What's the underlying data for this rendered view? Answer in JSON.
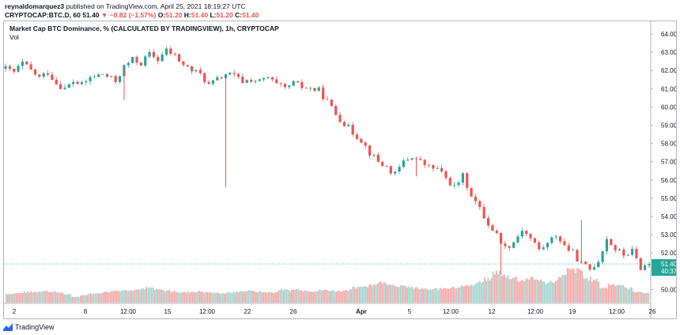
{
  "header": {
    "author": "reynaldomarquez3",
    "published": "published on TradingView.com, April 25, 2021 18:19:27 UTC",
    "symbol": "CRYPTOCAP:BTC.D, 60",
    "price": "51.40",
    "change": "−0.82 (−1.57%)",
    "o_label": "O:",
    "o_value": "51.20",
    "h_label": "H:",
    "h_value": "51.40",
    "l_label": "L:",
    "l_value": "51.20",
    "c_label": "C:",
    "c_value": "51.40"
  },
  "colors": {
    "up": "#26a69a",
    "down": "#ef5350",
    "up_vol": "#9dd5cf",
    "down_vol": "#f4a6a4",
    "axis_text": "#131722",
    "brand": "#2962ff"
  },
  "footer": {
    "brand": "TradingView"
  },
  "chart_data": {
    "type": "candlestick",
    "title": "Market Cap BTC Dominance, % (CALCULATED BY TRADINGVIEW), 1h, CRYPTOCAP",
    "volume_label": "Vol",
    "ylim": [
      49.2,
      64.5
    ],
    "y_ticks": [
      "64.00",
      "63.00",
      "62.00",
      "61.00",
      "60.00",
      "59.00",
      "58.00",
      "57.00",
      "56.00",
      "55.00",
      "54.00",
      "53.00",
      "52.00",
      "50.00"
    ],
    "x_ticks": [
      "2",
      "8",
      "12:00",
      "15",
      "12:00",
      "22",
      "26",
      "Apr",
      "5",
      "12:00",
      "12",
      "12:00",
      "19",
      "12:00",
      "26"
    ],
    "last_price": "51.40",
    "countdown": "40:37",
    "price_path": [
      [
        0,
        62.1
      ],
      [
        2,
        61.9
      ],
      [
        4,
        62.4
      ],
      [
        6,
        62.0
      ],
      [
        8,
        61.6
      ],
      [
        10,
        61.9
      ],
      [
        12,
        61.3
      ],
      [
        14,
        61.0
      ],
      [
        16,
        61.4
      ],
      [
        18,
        61.2
      ],
      [
        20,
        61.6
      ],
      [
        23,
        61.8
      ],
      [
        26,
        61.4
      ],
      [
        28,
        62.2
      ],
      [
        30,
        62.6
      ],
      [
        32,
        62.4
      ],
      [
        34,
        62.9
      ],
      [
        36,
        62.6
      ],
      [
        38,
        63.1
      ],
      [
        40,
        62.8
      ],
      [
        42,
        62.3
      ],
      [
        44,
        62.0
      ],
      [
        46,
        61.8
      ],
      [
        48,
        61.2
      ],
      [
        50,
        61.5
      ],
      [
        52,
        61.8
      ],
      [
        54,
        61.7
      ],
      [
        56,
        61.4
      ],
      [
        58,
        61.5
      ],
      [
        60,
        61.4
      ],
      [
        62,
        61.6
      ],
      [
        64,
        61.2
      ],
      [
        66,
        61.0
      ],
      [
        68,
        61.3
      ],
      [
        70,
        61.1
      ],
      [
        72,
        61.0
      ],
      [
        74,
        60.9
      ],
      [
        76,
        60.3
      ],
      [
        78,
        59.6
      ],
      [
        80,
        59.1
      ],
      [
        82,
        58.6
      ],
      [
        84,
        58.2
      ],
      [
        86,
        57.5
      ],
      [
        88,
        57.0
      ],
      [
        90,
        56.7
      ],
      [
        92,
        56.3
      ],
      [
        94,
        57.0
      ],
      [
        96,
        57.3
      ],
      [
        98,
        57.0
      ],
      [
        100,
        56.7
      ],
      [
        102,
        56.6
      ],
      [
        104,
        56.1
      ],
      [
        106,
        55.6
      ],
      [
        108,
        56.2
      ],
      [
        110,
        55.2
      ],
      [
        112,
        54.4
      ],
      [
        114,
        53.6
      ],
      [
        116,
        53.0
      ],
      [
        118,
        52.3
      ],
      [
        120,
        52.6
      ],
      [
        122,
        53.3
      ],
      [
        124,
        52.8
      ],
      [
        126,
        52.2
      ],
      [
        128,
        52.5
      ],
      [
        130,
        53.0
      ],
      [
        132,
        52.4
      ],
      [
        134,
        52.0
      ],
      [
        136,
        51.4
      ],
      [
        138,
        51.1
      ],
      [
        140,
        51.6
      ],
      [
        142,
        52.8
      ],
      [
        144,
        52.2
      ],
      [
        146,
        51.9
      ],
      [
        148,
        52.1
      ],
      [
        150,
        51.2
      ],
      [
        152,
        51.4
      ]
    ],
    "spikes": [
      [
        28,
        60.4
      ],
      [
        52,
        55.6
      ],
      [
        97,
        56.2
      ],
      [
        117,
        50.8
      ],
      [
        136,
        53.8
      ]
    ],
    "volume": [
      20,
      21,
      23,
      24,
      26,
      25,
      23,
      18,
      13,
      17,
      20,
      22,
      25,
      27,
      28,
      29,
      30,
      33,
      29,
      27,
      25,
      23,
      24,
      25,
      23,
      22,
      21,
      23,
      25,
      27,
      25,
      23,
      23,
      29,
      28,
      30,
      27,
      26,
      28,
      27,
      26,
      29,
      33,
      37,
      41,
      45,
      43,
      38,
      36,
      33,
      31,
      29,
      31,
      33,
      35,
      37,
      40,
      45,
      52,
      68,
      60,
      56,
      50,
      54,
      52,
      45,
      48,
      60,
      73,
      72,
      54,
      50,
      33,
      41,
      40,
      32,
      25,
      22
    ],
    "volume_max": 100
  }
}
